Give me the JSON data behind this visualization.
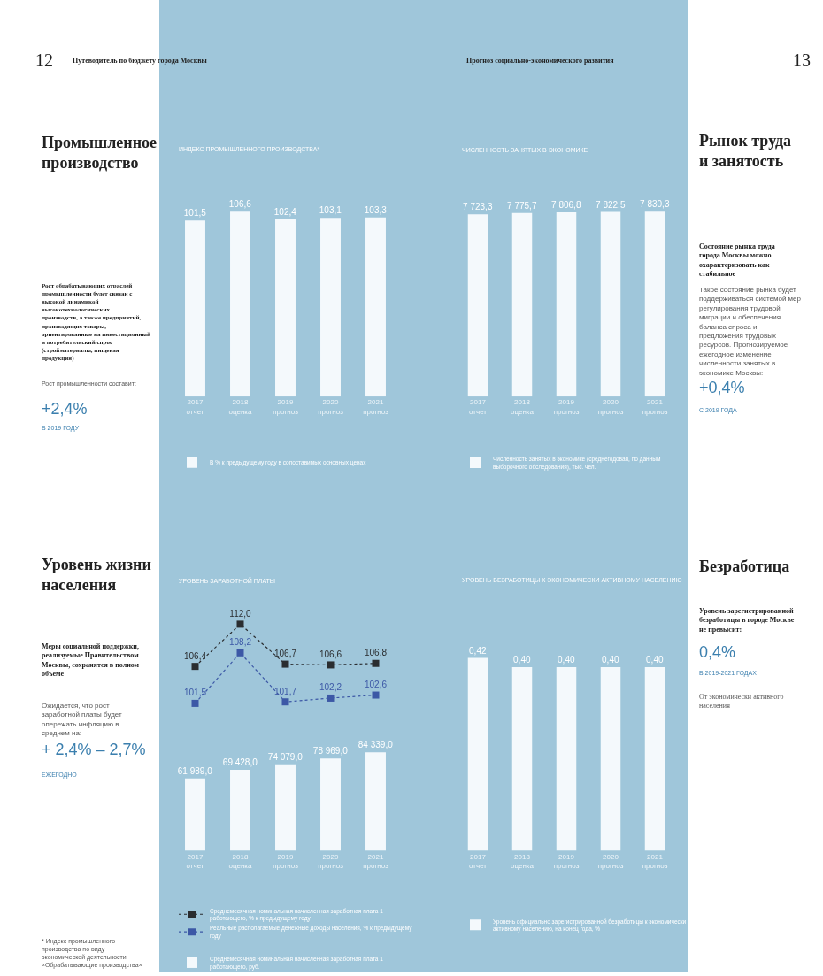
{
  "chart_data": [
    {
      "type": "bar",
      "title": "ИНДЕКС ПРОМЫШЛЕННОГО ПРОИЗВОДСТВА*",
      "categories": [
        "2017\nотчет",
        "2018\nоценка",
        "2019\nпрогноз",
        "2020\nпрогноз",
        "2021\nпрогноз"
      ],
      "series": [
        {
          "name": "В % к предыдущему году в сопоставимых основных ценах",
          "color": "#f4f9fc",
          "values": [
            101.5,
            106.6,
            102.4,
            103.1,
            103.3
          ],
          "value_labels": [
            "101,5",
            "106,6",
            "102,4",
            "103,1",
            "103,3"
          ]
        }
      ],
      "legend": "bottom"
    },
    {
      "type": "bar",
      "title": "ЧИСЛЕННОСТЬ ЗАНЯТЫХ В ЭКОНОМИКЕ",
      "categories": [
        "2017\nотчет",
        "2018\nоценка",
        "2019\nпрогноз",
        "2020\nпрогноз",
        "2021\nпрогноз"
      ],
      "series": [
        {
          "name": "Численность занятых в экономике (среднегодовая, по данным выборочного обследования), тыс. чел.",
          "color": "#f4f9fc",
          "values": [
            7723.3,
            7775.7,
            7806.8,
            7822.5,
            7830.3
          ],
          "value_labels": [
            "7 723,3",
            "7 775,7",
            "7 806,8",
            "7 822,5",
            "7 830,3"
          ]
        }
      ],
      "legend": "bottom"
    },
    {
      "type": "line",
      "title": "УРОВЕНЬ ЗАРАБОТНОЙ ПЛАТЫ",
      "categories": [
        null,
        null,
        null,
        null,
        null
      ],
      "series": [
        {
          "name": "Среднемесячная номинальная начисленная заработная плата 1 работающего, % к предыдущему году",
          "color": "#2a2d30",
          "values": [
            106.4,
            112.0,
            106.7,
            106.6,
            106.8
          ],
          "value_labels": [
            "106,4",
            "112,0",
            "106,7",
            "106,6",
            "106,8"
          ]
        },
        {
          "name": "Реальные располагаемые денежные доходы населения, % к предыдущему году",
          "color": "#3c58a6",
          "values": [
            101.5,
            108.2,
            101.7,
            102.2,
            102.6
          ],
          "value_labels": [
            "101,5",
            "108,2",
            "101,7",
            "102,2",
            "102,6"
          ]
        }
      ],
      "line_style": "dotted",
      "marker": "square",
      "legend": "bottom"
    },
    {
      "type": "bar",
      "categories": [
        "2017\nотчет",
        "2018\nоценка",
        "2019\nпрогноз",
        "2020\nпрогноз",
        "2021\nпрогноз"
      ],
      "series": [
        {
          "name": "Среднемесячная номинальная начисленная заработная плата 1 работающего, руб.",
          "color": "#f4f9fc",
          "values": [
            61989.0,
            69428.0,
            74079.0,
            78969.0,
            84339.0
          ],
          "value_labels": [
            "61 989,0",
            "69 428,0",
            "74 079,0",
            "78 969,0",
            "84 339,0"
          ]
        }
      ],
      "legend": "bottom"
    },
    {
      "type": "bar",
      "title": "УРОВЕНЬ БЕЗРАБОТИЦЫ К ЭКОНОМИЧЕСКИ АКТИВНОМУ НАСЕЛЕНИЮ",
      "categories": [
        "2017\nотчет",
        "2018\nоценка",
        "2019\nпрогноз",
        "2020\nпрогноз",
        "2021\nпрогноз"
      ],
      "series": [
        {
          "name": "Уровень официально зарегистрированной безработицы к экономически активному населению, на конец года, %",
          "color": "#f4f9fc",
          "values": [
            0.42,
            0.4,
            0.4,
            0.4,
            0.4
          ],
          "value_labels": [
            "0,42",
            "0,40",
            "0,40",
            "0,40",
            "0,40"
          ]
        }
      ],
      "legend": "bottom"
    },
    {
      "type": "other",
      "annotations": [
        "12",
        "Путеводитель по бюджету города Москвы",
        "Промышленное производство",
        "Рост обрабатывающих отраслей промышленности будет связан с высокой динамикой высокотехнологических производств, а также предприятий, производящих товары, ориентированные на инвестиционный и потребительский спрос (стройматериалы, пищевая продукция)",
        "Рост промышленности составит:",
        "+2,4%",
        "В 2019 ГОДУ",
        "Уровень жизни населения",
        "Меры социальной поддержки, реализуемые Правительством Москвы, сохранятся в полном объеме",
        "Ожидается, что рост заработной платы будет опережать инфляцию в среднем на:",
        "+ 2,4% – 2,7%",
        "ЕЖЕГОДНО",
        "* Индекс промышленного производства по виду экономической деятельности «Обрабатывающие производства»"
      ]
    },
    {
      "type": "other",
      "annotations": [
        "13",
        "Прогноз социально-экономического развития",
        "Рынок труда и занятость",
        "Состояние рынка труда города Москвы можно охарактеризовать как стабильное",
        "Такое состояние рынка будет поддерживаться системой мер регулирования трудовой миграции и обеспечения баланса спроса и предложения трудовых ресурсов. Прогнозируемое ежегодное изменение численности занятых в экономике Москвы:",
        "+0,4%",
        "С 2019 ГОДА",
        "Безработица",
        "Уровень зарегистрированной безработицы в городе Москве не превысит:",
        "0,4%",
        "В 2019-2021 ГОДАХ",
        "От экономически активного населения"
      ]
    }
  ]
}
